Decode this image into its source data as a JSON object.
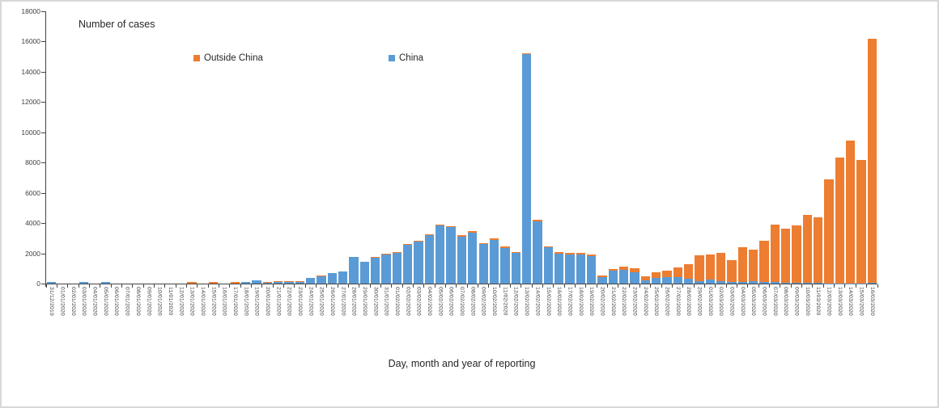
{
  "chart_data": {
    "type": "bar",
    "stacked": true,
    "title": "Number of cases",
    "xlabel": "Day, month and year of reporting",
    "ylabel": "",
    "ylim": [
      0,
      18000
    ],
    "ytick_interval": 2000,
    "grid": false,
    "legend_position": "top-inside",
    "legend_order": [
      "Outside China",
      "China"
    ],
    "categories": [
      "31/12/2019",
      "01/01/2020",
      "02/01/2020",
      "03/01/2020",
      "04/01/2020",
      "05/01/2020",
      "06/01/2020",
      "07/01/2020",
      "08/01/2020",
      "09/01/2020",
      "10/01/2020",
      "11/01/2020",
      "12/01/2020",
      "13/01/2020",
      "14/01/2020",
      "15/01/2020",
      "16/01/2020",
      "17/01/2020",
      "18/01/2020",
      "19/01/2020",
      "20/01/2020",
      "21/01/2020",
      "22/01/2020",
      "23/01/2020",
      "24/01/2020",
      "25/01/2020",
      "26/01/2020",
      "27/01/2020",
      "28/01/2020",
      "29/01/2020",
      "30/01/2020",
      "31/01/2020",
      "01/02/2020",
      "02/02/2020",
      "03/02/2020",
      "04/02/2020",
      "05/02/2020",
      "06/02/2020",
      "07/02/2020",
      "08/02/2020",
      "09/02/2020",
      "10/02/2020",
      "11/02/2020",
      "12/02/2020",
      "13/02/2020",
      "14/02/2020",
      "15/02/2020",
      "16/02/2020",
      "17/02/2020",
      "18/02/2020",
      "19/02/2020",
      "20/02/2020",
      "21/02/2020",
      "22/02/2020",
      "23/02/2020",
      "24/02/2020",
      "25/02/2020",
      "26/02/2020",
      "27/02/2020",
      "28/02/2020",
      "29/02/2020",
      "01/03/2020",
      "02/03/2020",
      "03/03/2020",
      "04/03/2020",
      "05/03/2020",
      "06/03/2020",
      "07/03/2020",
      "08/03/2020",
      "09/03/2020",
      "10/03/2020",
      "11/03/2020",
      "12/03/2020",
      "13/03/2020",
      "14/03/2020",
      "15/03/2020",
      "16/03/2020"
    ],
    "series": [
      {
        "name": "China",
        "color": "#5B9BD5",
        "values": [
          90,
          0,
          0,
          90,
          0,
          100,
          0,
          0,
          0,
          0,
          0,
          0,
          0,
          0,
          0,
          0,
          0,
          0,
          105,
          200,
          30,
          120,
          130,
          130,
          375,
          500,
          670,
          780,
          1740,
          1420,
          1720,
          1940,
          2020,
          2560,
          2770,
          3220,
          3860,
          3750,
          3120,
          3390,
          2590,
          2900,
          2370,
          2030,
          15152,
          4110,
          2400,
          1950,
          1940,
          1940,
          1820,
          420,
          830,
          890,
          760,
          220,
          380,
          410,
          440,
          330,
          180,
          250,
          140,
          105,
          120,
          150,
          100,
          100,
          50,
          45,
          30,
          60,
          25,
          20,
          20,
          25,
          30
        ]
      },
      {
        "name": "Outside China",
        "color": "#ED7D31",
        "values": [
          0,
          0,
          0,
          0,
          0,
          0,
          0,
          0,
          0,
          0,
          0,
          0,
          0,
          100,
          0,
          95,
          0,
          95,
          0,
          30,
          85,
          55,
          10,
          10,
          15,
          35,
          40,
          40,
          40,
          40,
          50,
          60,
          60,
          60,
          60,
          60,
          60,
          60,
          70,
          70,
          70,
          80,
          110,
          50,
          90,
          120,
          60,
          110,
          110,
          90,
          120,
          115,
          150,
          220,
          255,
          260,
          370,
          430,
          610,
          950,
          1690,
          1670,
          1910,
          1445,
          2280,
          2080,
          2750,
          3820,
          3600,
          3815,
          4510,
          4300,
          6865,
          8320,
          9450,
          8145,
          16150
        ]
      }
    ],
    "yticks": [
      0,
      2000,
      4000,
      6000,
      8000,
      10000,
      12000,
      14000,
      16000,
      18000
    ]
  }
}
